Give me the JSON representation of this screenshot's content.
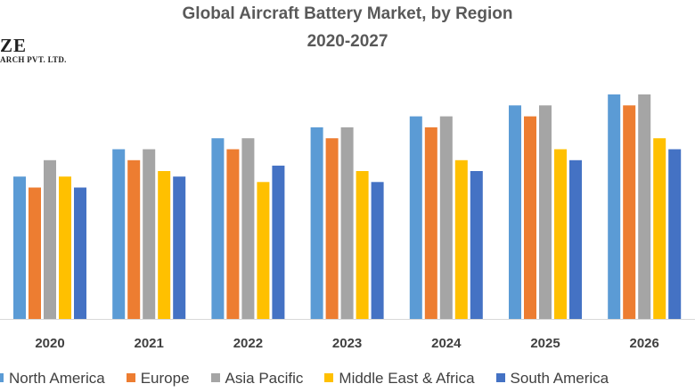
{
  "chart_data": {
    "type": "bar",
    "title": "Global Aircraft Battery Market, by Region",
    "subtitle": "2020-2027",
    "categories": [
      "2020",
      "2021",
      "2022",
      "2023",
      "2024",
      "2025",
      "2026"
    ],
    "series": [
      {
        "name": "North America",
        "color": "#5b9bd5",
        "values": [
          26,
          31,
          33,
          35,
          37,
          39,
          41
        ]
      },
      {
        "name": "Europe",
        "color": "#ed7d31",
        "values": [
          24,
          29,
          31,
          33,
          35,
          37,
          39
        ]
      },
      {
        "name": "Asia Pacific",
        "color": "#a5a5a5",
        "values": [
          29,
          31,
          33,
          35,
          37,
          39,
          41
        ]
      },
      {
        "name": "Middle East & Africa",
        "color": "#ffc000",
        "values": [
          26,
          27,
          25,
          27,
          29,
          31,
          33
        ]
      },
      {
        "name": "South America",
        "color": "#4472c4",
        "values": [
          24,
          26,
          28,
          25,
          27,
          29,
          31
        ]
      }
    ],
    "xlabel": "",
    "ylabel": "",
    "ylim": [
      0,
      41
    ],
    "grid": false,
    "legend": "bottom"
  },
  "logo": {
    "line1": "ZE",
    "line2": "ARCH PVT. LTD."
  }
}
